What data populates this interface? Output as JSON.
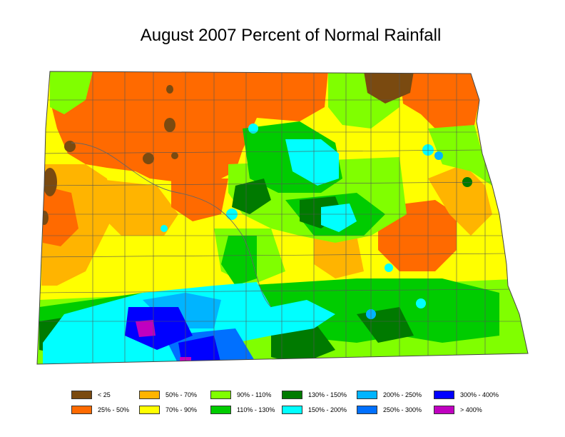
{
  "title": "August 2007 Percent of Normal Rainfall",
  "legend": [
    {
      "label": "< 25",
      "color": "#7a4a10"
    },
    {
      "label": "25% - 50%",
      "color": "#ff6a00"
    },
    {
      "label": "50% - 70%",
      "color": "#ffb400"
    },
    {
      "label": "70% - 90%",
      "color": "#ffff00"
    },
    {
      "label": "90% - 110%",
      "color": "#80ff00"
    },
    {
      "label": "110% - 130%",
      "color": "#00cc00"
    },
    {
      "label": "130% - 150%",
      "color": "#007a00"
    },
    {
      "label": "150% - 200%",
      "color": "#00ffff"
    },
    {
      "label": "200% - 250%",
      "color": "#00b4ff"
    },
    {
      "label": "250% - 300%",
      "color": "#0070ff"
    },
    {
      "label": "300% - 400%",
      "color": "#0000ff"
    },
    {
      "label": "> 400%",
      "color": "#c000c0"
    }
  ]
}
